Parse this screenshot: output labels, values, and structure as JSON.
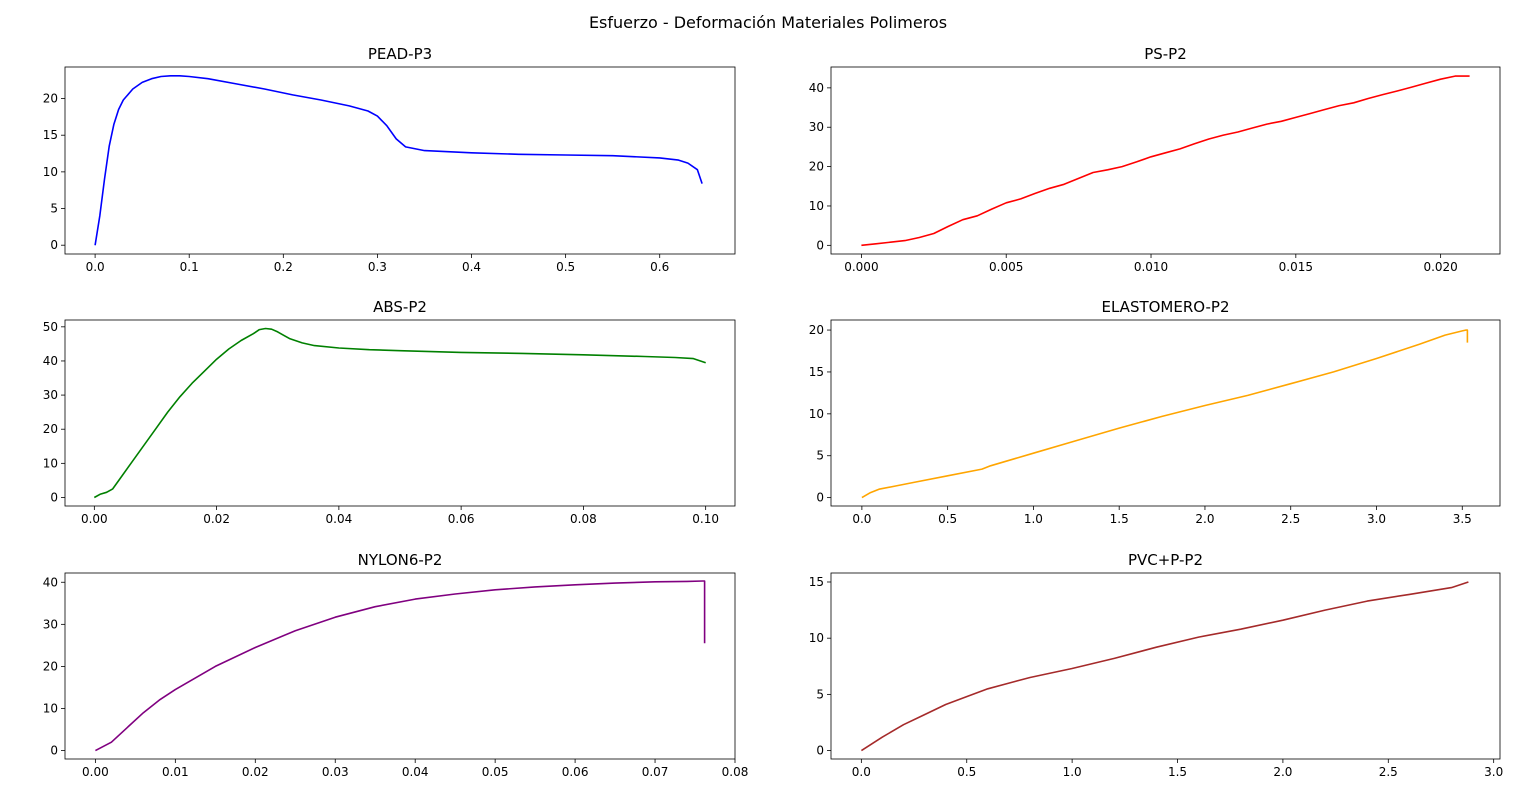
{
  "figure": {
    "title": "Esfuerzo - Deformación Materiales Polimeros"
  },
  "chart_data": [
    {
      "type": "line",
      "title": "PEAD-P3",
      "color": "#0000ff",
      "xlim": [
        -0.032,
        0.68
      ],
      "ylim": [
        -1.2,
        24.3
      ],
      "xticks": [
        0.0,
        0.1,
        0.2,
        0.3,
        0.4,
        0.5,
        0.6
      ],
      "xtick_labels": [
        "0.0",
        "0.1",
        "0.2",
        "0.3",
        "0.4",
        "0.5",
        "0.6"
      ],
      "yticks": [
        0,
        5,
        10,
        15,
        20
      ],
      "ytick_labels": [
        "0",
        "5",
        "10",
        "15",
        "20"
      ],
      "x": [
        0.0,
        0.005,
        0.01,
        0.015,
        0.02,
        0.025,
        0.03,
        0.04,
        0.05,
        0.06,
        0.07,
        0.08,
        0.09,
        0.1,
        0.12,
        0.15,
        0.18,
        0.21,
        0.24,
        0.27,
        0.29,
        0.3,
        0.31,
        0.32,
        0.33,
        0.35,
        0.4,
        0.45,
        0.5,
        0.55,
        0.6,
        0.62,
        0.63,
        0.64,
        0.645
      ],
      "y": [
        0.0,
        4.0,
        9.0,
        13.5,
        16.5,
        18.5,
        19.8,
        21.3,
        22.2,
        22.7,
        23.0,
        23.1,
        23.1,
        23.0,
        22.7,
        22.0,
        21.3,
        20.5,
        19.8,
        19.0,
        18.3,
        17.6,
        16.3,
        14.5,
        13.4,
        12.9,
        12.6,
        12.4,
        12.3,
        12.2,
        11.9,
        11.6,
        11.2,
        10.3,
        8.4
      ]
    },
    {
      "type": "line",
      "title": "PS-P2",
      "color": "#ff0000",
      "xlim": [
        -0.00105,
        0.02205
      ],
      "ylim": [
        -2.2,
        45.3
      ],
      "xticks": [
        0.0,
        0.005,
        0.01,
        0.015,
        0.02
      ],
      "xtick_labels": [
        "0.000",
        "0.005",
        "0.010",
        "0.015",
        "0.020"
      ],
      "yticks": [
        0,
        10,
        20,
        30,
        40
      ],
      "ytick_labels": [
        "0",
        "10",
        "20",
        "30",
        "40"
      ],
      "x": [
        0.0,
        0.0005,
        0.001,
        0.0015,
        0.002,
        0.0025,
        0.003,
        0.0035,
        0.004,
        0.0045,
        0.005,
        0.0055,
        0.006,
        0.0065,
        0.007,
        0.0075,
        0.008,
        0.0085,
        0.009,
        0.0095,
        0.01,
        0.0105,
        0.011,
        0.0115,
        0.012,
        0.0125,
        0.013,
        0.0135,
        0.014,
        0.0145,
        0.015,
        0.0155,
        0.016,
        0.0165,
        0.017,
        0.0175,
        0.018,
        0.0185,
        0.019,
        0.0195,
        0.02,
        0.0205,
        0.021
      ],
      "y": [
        0.0,
        0.4,
        0.8,
        1.2,
        2.0,
        3.0,
        4.8,
        6.5,
        7.5,
        9.2,
        10.8,
        11.8,
        13.2,
        14.5,
        15.5,
        17.0,
        18.5,
        19.2,
        20.0,
        21.2,
        22.5,
        23.5,
        24.5,
        25.8,
        27.0,
        28.0,
        28.8,
        29.8,
        30.8,
        31.5,
        32.5,
        33.5,
        34.5,
        35.5,
        36.2,
        37.3,
        38.3,
        39.2,
        40.2,
        41.2,
        42.2,
        43.0,
        43.0
      ]
    },
    {
      "type": "line",
      "title": "ABS-P2",
      "color": "#008000",
      "xlim": [
        -0.0048,
        0.1048
      ],
      "ylim": [
        -2.5,
        52.0
      ],
      "xticks": [
        0.0,
        0.02,
        0.04,
        0.06,
        0.08,
        0.1
      ],
      "xtick_labels": [
        "0.00",
        "0.02",
        "0.04",
        "0.06",
        "0.08",
        "0.10"
      ],
      "yticks": [
        0,
        10,
        20,
        30,
        40,
        50
      ],
      "ytick_labels": [
        "0",
        "10",
        "20",
        "30",
        "40",
        "50"
      ],
      "x": [
        0.0,
        0.001,
        0.002,
        0.003,
        0.004,
        0.006,
        0.008,
        0.01,
        0.012,
        0.014,
        0.016,
        0.018,
        0.02,
        0.022,
        0.024,
        0.026,
        0.027,
        0.028,
        0.029,
        0.03,
        0.031,
        0.032,
        0.034,
        0.036,
        0.04,
        0.045,
        0.05,
        0.06,
        0.07,
        0.08,
        0.09,
        0.095,
        0.098,
        0.1
      ],
      "y": [
        0.0,
        1.0,
        1.5,
        2.5,
        5.0,
        10.0,
        15.0,
        20.0,
        25.0,
        29.5,
        33.5,
        37.0,
        40.5,
        43.5,
        46.0,
        48.0,
        49.2,
        49.5,
        49.3,
        48.5,
        47.5,
        46.5,
        45.3,
        44.5,
        43.8,
        43.3,
        43.0,
        42.5,
        42.2,
        41.8,
        41.3,
        41.0,
        40.7,
        39.5
      ]
    },
    {
      "type": "line",
      "title": "ELASTOMERO-P2",
      "color": "#ffa500",
      "xlim": [
        -0.18,
        3.72
      ],
      "ylim": [
        -1.0,
        21.2
      ],
      "xticks": [
        0.0,
        0.5,
        1.0,
        1.5,
        2.0,
        2.5,
        3.0,
        3.5
      ],
      "xtick_labels": [
        "0.0",
        "0.5",
        "1.0",
        "1.5",
        "2.0",
        "2.5",
        "3.0",
        "3.5"
      ],
      "yticks": [
        0,
        5,
        10,
        15,
        20
      ],
      "ytick_labels": [
        "0",
        "5",
        "10",
        "15",
        "20"
      ],
      "x": [
        0.0,
        0.05,
        0.1,
        0.2,
        0.3,
        0.5,
        0.7,
        0.75,
        1.0,
        1.25,
        1.5,
        1.75,
        2.0,
        2.25,
        2.5,
        2.75,
        3.0,
        3.25,
        3.4,
        3.5,
        3.52,
        3.53,
        3.53
      ],
      "y": [
        0.0,
        0.6,
        1.0,
        1.4,
        1.8,
        2.6,
        3.4,
        3.8,
        5.3,
        6.8,
        8.3,
        9.7,
        11.0,
        12.2,
        13.6,
        15.0,
        16.6,
        18.3,
        19.4,
        19.9,
        20.0,
        20.0,
        18.5
      ]
    },
    {
      "type": "line",
      "title": "NYLON6-P2",
      "color": "#800080",
      "xlim": [
        -0.0038,
        0.08
      ],
      "ylim": [
        -2.0,
        42.2
      ],
      "xticks": [
        0.0,
        0.01,
        0.02,
        0.03,
        0.04,
        0.05,
        0.06,
        0.07,
        0.08
      ],
      "xtick_labels": [
        "0.00",
        "0.01",
        "0.02",
        "0.03",
        "0.04",
        "0.05",
        "0.06",
        "0.07",
        "0.08"
      ],
      "yticks": [
        0,
        10,
        20,
        30,
        40
      ],
      "ytick_labels": [
        "0",
        "10",
        "20",
        "30",
        "40"
      ],
      "x": [
        0.0,
        0.002,
        0.004,
        0.006,
        0.008,
        0.01,
        0.015,
        0.02,
        0.025,
        0.03,
        0.035,
        0.04,
        0.045,
        0.05,
        0.055,
        0.06,
        0.065,
        0.07,
        0.074,
        0.076,
        0.0762,
        0.0762
      ],
      "y": [
        0.0,
        2.0,
        5.5,
        9.0,
        12.0,
        14.5,
        20.0,
        24.5,
        28.5,
        31.7,
        34.2,
        36.0,
        37.2,
        38.2,
        38.9,
        39.4,
        39.8,
        40.1,
        40.2,
        40.3,
        40.3,
        25.5
      ]
    },
    {
      "type": "line",
      "title": "PVC+P-P2",
      "color": "#a52a2a",
      "xlim": [
        -0.144,
        3.03
      ],
      "ylim": [
        -0.75,
        15.8
      ],
      "xticks": [
        0.0,
        0.5,
        1.0,
        1.5,
        2.0,
        2.5,
        3.0
      ],
      "xtick_labels": [
        "0.0",
        "0.5",
        "1.0",
        "1.5",
        "2.0",
        "2.5",
        "3.0"
      ],
      "yticks": [
        0,
        5,
        10,
        15
      ],
      "ytick_labels": [
        "0",
        "5",
        "10",
        "15"
      ],
      "x": [
        0.0,
        0.05,
        0.1,
        0.2,
        0.3,
        0.4,
        0.5,
        0.6,
        0.7,
        0.8,
        0.9,
        1.0,
        1.2,
        1.4,
        1.6,
        1.8,
        2.0,
        2.2,
        2.4,
        2.6,
        2.8,
        2.88
      ],
      "y": [
        0.0,
        0.6,
        1.2,
        2.3,
        3.2,
        4.1,
        4.8,
        5.5,
        6.0,
        6.5,
        6.9,
        7.3,
        8.2,
        9.2,
        10.1,
        10.8,
        11.6,
        12.5,
        13.3,
        13.9,
        14.5,
        15.0
      ]
    }
  ]
}
